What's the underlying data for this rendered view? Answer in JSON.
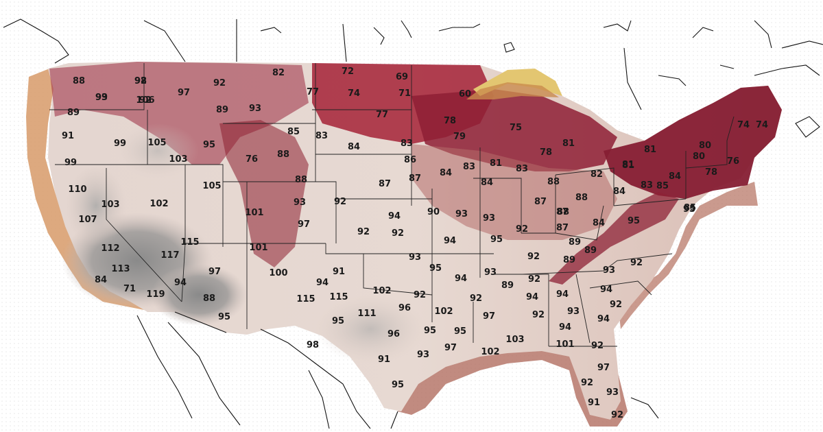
{
  "map": {
    "temperature_labels": [
      "98",
      "99",
      "106",
      "97",
      "92",
      "82",
      "72",
      "69",
      "89",
      "93",
      "77",
      "74",
      "71",
      "88",
      "89",
      "91",
      "99",
      "105",
      "95",
      "85",
      "83",
      "77",
      "78",
      "60",
      "79",
      "75",
      "74",
      "80",
      "78",
      "81",
      "81",
      "81",
      "74",
      "99",
      "103",
      "76",
      "88",
      "84",
      "83",
      "86",
      "84",
      "83",
      "81",
      "83",
      "80",
      "76",
      "78",
      "110",
      "105",
      "88",
      "87",
      "87",
      "84",
      "88",
      "82",
      "81",
      "84",
      "83",
      "84",
      "103",
      "102",
      "93",
      "92",
      "94",
      "90",
      "93",
      "93",
      "87",
      "88",
      "87",
      "85",
      "85",
      "88",
      "107",
      "101",
      "97",
      "92",
      "92",
      "94",
      "95",
      "92",
      "87",
      "84",
      "89",
      "95",
      "115",
      "101",
      "93",
      "89",
      "92",
      "95",
      "117",
      "112",
      "113",
      "97",
      "100",
      "94",
      "91",
      "95",
      "94",
      "93",
      "92",
      "92",
      "93",
      "89",
      "94",
      "84",
      "94",
      "71",
      "119",
      "88",
      "115",
      "115",
      "102",
      "96",
      "92",
      "92",
      "89",
      "94",
      "94",
      "92",
      "94",
      "95",
      "95",
      "111",
      "102",
      "97",
      "92",
      "93",
      "95",
      "95",
      "94",
      "92",
      "98",
      "96",
      "91",
      "93",
      "97",
      "102",
      "103",
      "101",
      "97",
      "95",
      "92",
      "93",
      "91",
      "92",
      "92",
      "93",
      "92"
    ]
  }
}
